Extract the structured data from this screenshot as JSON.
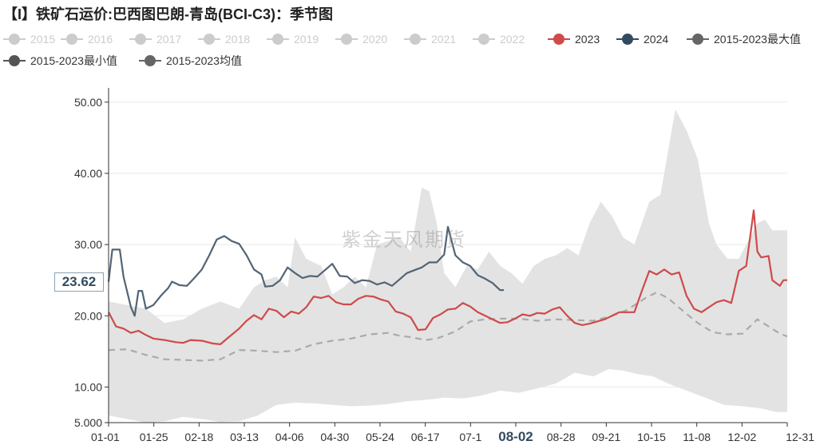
{
  "title": "【I】铁矿石运价:巴西图巴朗-青岛(BCI-C3)：季节图",
  "watermark": "紫金天风期货",
  "current_value_label": "23.62",
  "highlight_tick": "08-02",
  "colors": {
    "band": "#e3e3e3",
    "s2023": "#cf4a4a",
    "s2024": "#526475",
    "avg": "#aaaaaa",
    "legend_inactive": "#cccccc",
    "axis": "#333333",
    "grid": "#e8e8e8"
  },
  "legend": [
    {
      "name": "2015",
      "color": "#cccccc",
      "active": false
    },
    {
      "name": "2016",
      "color": "#cccccc",
      "active": false
    },
    {
      "name": "2017",
      "color": "#cccccc",
      "active": false
    },
    {
      "name": "2018",
      "color": "#cccccc",
      "active": false
    },
    {
      "name": "2019",
      "color": "#cccccc",
      "active": false
    },
    {
      "name": "2020",
      "color": "#cccccc",
      "active": false
    },
    {
      "name": "2021",
      "color": "#cccccc",
      "active": false
    },
    {
      "name": "2022",
      "color": "#cccccc",
      "active": false
    },
    {
      "name": "2023",
      "color": "#cf4a4a",
      "active": true
    },
    {
      "name": "2024",
      "color": "#334b5f",
      "active": true
    },
    {
      "name": "2015-2023最大值",
      "color": "#666666",
      "active": true
    },
    {
      "name": "2015-2023最小值",
      "color": "#555555",
      "active": true
    },
    {
      "name": "2015-2023均值",
      "color": "#666666",
      "active": true
    }
  ],
  "chart_data": {
    "type": "line",
    "x_ticks": [
      "01-01",
      "01-25",
      "02-18",
      "03-13",
      "04-06",
      "04-30",
      "05-24",
      "06-17",
      "07-1",
      "08-02",
      "08-28",
      "09-21",
      "10-15",
      "11-08",
      "12-02",
      "12-31"
    ],
    "y_ticks": [
      "5.000",
      "10.00",
      "20.00",
      "30.00",
      "40.00",
      "50.00"
    ],
    "ylim": [
      5,
      52
    ],
    "x_range_days": [
      0,
      364
    ],
    "max": [
      [
        0,
        22
      ],
      [
        10,
        21.5
      ],
      [
        20,
        21
      ],
      [
        30,
        19
      ],
      [
        40,
        19.5
      ],
      [
        50,
        21
      ],
      [
        60,
        22
      ],
      [
        70,
        21
      ],
      [
        78,
        24
      ],
      [
        84,
        25
      ],
      [
        90,
        25.5
      ],
      [
        96,
        24
      ],
      [
        100,
        31
      ],
      [
        106,
        28
      ],
      [
        114,
        27
      ],
      [
        120,
        23
      ],
      [
        126,
        24
      ],
      [
        132,
        25.5
      ],
      [
        138,
        24
      ],
      [
        144,
        30
      ],
      [
        150,
        30.5
      ],
      [
        156,
        31
      ],
      [
        162,
        29
      ],
      [
        168,
        38
      ],
      [
        172,
        37.5
      ],
      [
        176,
        33
      ],
      [
        180,
        26
      ],
      [
        186,
        24
      ],
      [
        192,
        27
      ],
      [
        198,
        26.5
      ],
      [
        204,
        29
      ],
      [
        210,
        27
      ],
      [
        216,
        26
      ],
      [
        222,
        24.5
      ],
      [
        228,
        27
      ],
      [
        234,
        28
      ],
      [
        240,
        28.5
      ],
      [
        246,
        29.5
      ],
      [
        252,
        28.5
      ],
      [
        258,
        33
      ],
      [
        264,
        36
      ],
      [
        270,
        34
      ],
      [
        276,
        31
      ],
      [
        282,
        30
      ],
      [
        290,
        36
      ],
      [
        296,
        37
      ],
      [
        304,
        49
      ],
      [
        310,
        46
      ],
      [
        316,
        42
      ],
      [
        322,
        33
      ],
      [
        326,
        30
      ],
      [
        332,
        28
      ],
      [
        338,
        28
      ],
      [
        342,
        30
      ],
      [
        348,
        33
      ],
      [
        352,
        33.5
      ],
      [
        356,
        32
      ],
      [
        364,
        32
      ]
    ],
    "min": [
      [
        0,
        6
      ],
      [
        10,
        5.5
      ],
      [
        20,
        5
      ],
      [
        30,
        5.2
      ],
      [
        40,
        5.8
      ],
      [
        50,
        5.5
      ],
      [
        60,
        5.1
      ],
      [
        70,
        5.2
      ],
      [
        80,
        6
      ],
      [
        90,
        7.5
      ],
      [
        100,
        7.8
      ],
      [
        110,
        7.7
      ],
      [
        120,
        7.5
      ],
      [
        130,
        7.3
      ],
      [
        140,
        7.4
      ],
      [
        150,
        7.6
      ],
      [
        160,
        8
      ],
      [
        170,
        8.2
      ],
      [
        180,
        8.5
      ],
      [
        190,
        8.4
      ],
      [
        200,
        8.8
      ],
      [
        210,
        9.5
      ],
      [
        220,
        9.2
      ],
      [
        230,
        9.8
      ],
      [
        240,
        10.5
      ],
      [
        250,
        12
      ],
      [
        260,
        11.5
      ],
      [
        268,
        12.5
      ],
      [
        276,
        12.3
      ],
      [
        284,
        11.8
      ],
      [
        292,
        11.5
      ],
      [
        300,
        10.5
      ],
      [
        310,
        9.5
      ],
      [
        320,
        8.5
      ],
      [
        330,
        7.5
      ],
      [
        340,
        7.3
      ],
      [
        350,
        7
      ],
      [
        358,
        6.5
      ],
      [
        364,
        6.5
      ]
    ],
    "series": [
      {
        "name": "2023",
        "color": "#cf4a4a",
        "width": 2.2,
        "dash": "",
        "points": [
          [
            0,
            20.5
          ],
          [
            4,
            18.5
          ],
          [
            8,
            18.2
          ],
          [
            12,
            17.6
          ],
          [
            16,
            17.9
          ],
          [
            20,
            17.3
          ],
          [
            24,
            16.8
          ],
          [
            30,
            16.6
          ],
          [
            36,
            16.3
          ],
          [
            40,
            16.2
          ],
          [
            44,
            16.6
          ],
          [
            50,
            16.5
          ],
          [
            56,
            16.1
          ],
          [
            60,
            16.0
          ],
          [
            64,
            16.9
          ],
          [
            70,
            18.2
          ],
          [
            74,
            19.3
          ],
          [
            78,
            20.1
          ],
          [
            82,
            19.5
          ],
          [
            86,
            21.0
          ],
          [
            90,
            20.7
          ],
          [
            94,
            19.8
          ],
          [
            98,
            20.6
          ],
          [
            102,
            20.3
          ],
          [
            106,
            21.2
          ],
          [
            110,
            22.7
          ],
          [
            114,
            22.5
          ],
          [
            118,
            22.8
          ],
          [
            122,
            21.9
          ],
          [
            126,
            21.6
          ],
          [
            130,
            21.6
          ],
          [
            134,
            22.4
          ],
          [
            138,
            22.8
          ],
          [
            142,
            22.7
          ],
          [
            146,
            22.3
          ],
          [
            150,
            22.0
          ],
          [
            154,
            20.6
          ],
          [
            158,
            20.3
          ],
          [
            162,
            19.8
          ],
          [
            166,
            18.0
          ],
          [
            170,
            18.1
          ],
          [
            174,
            19.7
          ],
          [
            178,
            20.2
          ],
          [
            182,
            20.9
          ],
          [
            186,
            21.0
          ],
          [
            190,
            21.8
          ],
          [
            194,
            21.3
          ],
          [
            198,
            20.5
          ],
          [
            202,
            20.0
          ],
          [
            206,
            19.5
          ],
          [
            210,
            19.0
          ],
          [
            214,
            19.1
          ],
          [
            218,
            19.6
          ],
          [
            222,
            20.2
          ],
          [
            226,
            20.0
          ],
          [
            230,
            20.4
          ],
          [
            234,
            20.3
          ],
          [
            238,
            20.9
          ],
          [
            242,
            21.2
          ],
          [
            246,
            20.0
          ],
          [
            250,
            19.0
          ],
          [
            254,
            18.7
          ],
          [
            258,
            18.9
          ],
          [
            262,
            19.2
          ],
          [
            266,
            19.5
          ],
          [
            270,
            20.0
          ],
          [
            274,
            20.5
          ],
          [
            278,
            20.5
          ],
          [
            282,
            20.5
          ],
          [
            286,
            23.5
          ],
          [
            290,
            26.3
          ],
          [
            294,
            25.8
          ],
          [
            298,
            26.5
          ],
          [
            302,
            25.8
          ],
          [
            306,
            26.1
          ],
          [
            310,
            22.8
          ],
          [
            314,
            21.0
          ],
          [
            318,
            20.5
          ],
          [
            322,
            21.2
          ],
          [
            326,
            21.9
          ],
          [
            330,
            22.2
          ],
          [
            334,
            21.8
          ],
          [
            338,
            26.3
          ],
          [
            342,
            27.0
          ],
          [
            346,
            34.8
          ],
          [
            348,
            29.0
          ],
          [
            350,
            28.2
          ],
          [
            354,
            28.4
          ],
          [
            356,
            25.0
          ],
          [
            360,
            24.2
          ],
          [
            362,
            25.0
          ],
          [
            364,
            25.0
          ]
        ]
      },
      {
        "name": "2024",
        "color": "#526475",
        "width": 2.2,
        "dash": "",
        "points": [
          [
            0,
            24.8
          ],
          [
            2,
            29.3
          ],
          [
            6,
            29.3
          ],
          [
            8,
            25.5
          ],
          [
            12,
            21.2
          ],
          [
            14,
            20.0
          ],
          [
            16,
            23.5
          ],
          [
            18,
            23.5
          ],
          [
            20,
            21.0
          ],
          [
            24,
            21.5
          ],
          [
            28,
            22.8
          ],
          [
            32,
            23.9
          ],
          [
            34,
            24.8
          ],
          [
            38,
            24.3
          ],
          [
            42,
            24.2
          ],
          [
            46,
            25.3
          ],
          [
            50,
            26.5
          ],
          [
            54,
            28.5
          ],
          [
            58,
            30.7
          ],
          [
            62,
            31.2
          ],
          [
            66,
            30.5
          ],
          [
            70,
            30.1
          ],
          [
            74,
            28.5
          ],
          [
            78,
            26.5
          ],
          [
            82,
            25.8
          ],
          [
            84,
            24.1
          ],
          [
            88,
            24.2
          ],
          [
            92,
            25.0
          ],
          [
            96,
            26.8
          ],
          [
            100,
            26.0
          ],
          [
            104,
            25.3
          ],
          [
            108,
            25.6
          ],
          [
            112,
            25.5
          ],
          [
            116,
            26.4
          ],
          [
            120,
            27.3
          ],
          [
            124,
            25.6
          ],
          [
            128,
            25.5
          ],
          [
            132,
            24.6
          ],
          [
            136,
            25.0
          ],
          [
            140,
            24.9
          ],
          [
            144,
            24.4
          ],
          [
            148,
            24.7
          ],
          [
            152,
            24.2
          ],
          [
            156,
            25.1
          ],
          [
            160,
            26.0
          ],
          [
            164,
            26.4
          ],
          [
            168,
            26.8
          ],
          [
            172,
            27.5
          ],
          [
            176,
            27.5
          ],
          [
            180,
            28.6
          ],
          [
            182,
            32.5
          ],
          [
            186,
            28.5
          ],
          [
            190,
            27.5
          ],
          [
            194,
            27.0
          ],
          [
            198,
            25.7
          ],
          [
            202,
            25.2
          ],
          [
            206,
            24.6
          ],
          [
            210,
            23.6
          ],
          [
            212,
            23.62
          ]
        ]
      },
      {
        "name": "2015-2023均值",
        "color": "#aaaaaa",
        "width": 2.2,
        "dash": "8,6",
        "points": [
          [
            0,
            15.2
          ],
          [
            10,
            15.3
          ],
          [
            20,
            14.5
          ],
          [
            30,
            13.9
          ],
          [
            40,
            13.8
          ],
          [
            50,
            13.7
          ],
          [
            60,
            13.9
          ],
          [
            70,
            15.2
          ],
          [
            80,
            15.1
          ],
          [
            90,
            14.9
          ],
          [
            100,
            15.1
          ],
          [
            110,
            16.0
          ],
          [
            120,
            16.5
          ],
          [
            130,
            16.8
          ],
          [
            140,
            17.4
          ],
          [
            150,
            17.6
          ],
          [
            156,
            17.2
          ],
          [
            162,
            17.0
          ],
          [
            170,
            16.6
          ],
          [
            176,
            16.8
          ],
          [
            186,
            17.8
          ],
          [
            194,
            19.2
          ],
          [
            202,
            19.5
          ],
          [
            210,
            19.6
          ],
          [
            220,
            19.6
          ],
          [
            230,
            19.3
          ],
          [
            240,
            19.5
          ],
          [
            250,
            19.4
          ],
          [
            260,
            19.3
          ],
          [
            270,
            20.0
          ],
          [
            278,
            20.8
          ],
          [
            288,
            22.5
          ],
          [
            294,
            23.3
          ],
          [
            300,
            22.5
          ],
          [
            308,
            20.7
          ],
          [
            316,
            19.0
          ],
          [
            324,
            17.7
          ],
          [
            332,
            17.4
          ],
          [
            340,
            17.5
          ],
          [
            344,
            18.5
          ],
          [
            348,
            19.5
          ],
          [
            354,
            18.5
          ],
          [
            360,
            17.5
          ],
          [
            364,
            17.1
          ]
        ]
      }
    ]
  }
}
